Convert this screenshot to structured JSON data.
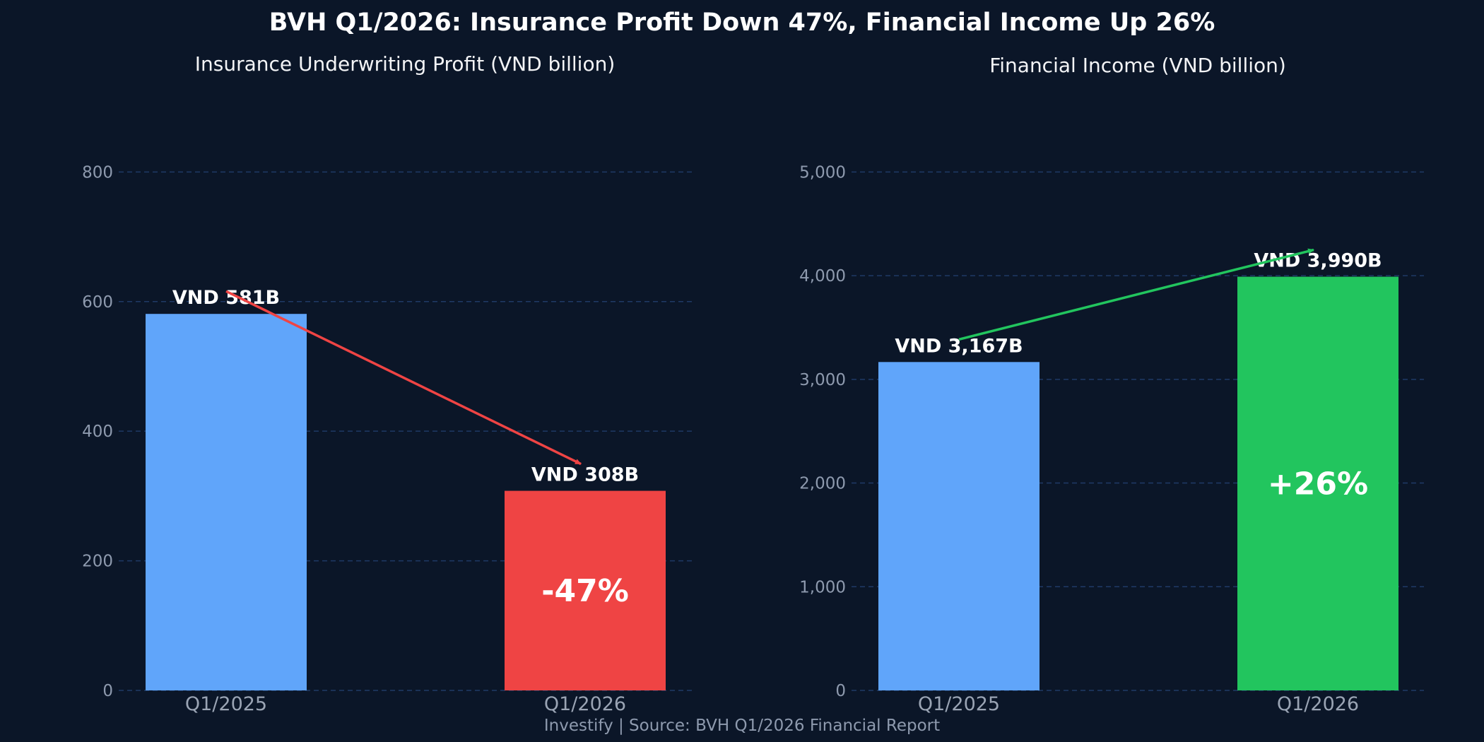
{
  "title": "BVH Q1/2026: Insurance Profit Down 47%, Financial Income Up 26%",
  "footer": "Investify  |  Source: BVH Q1/2026 Financial Report",
  "colors": {
    "background": "#0b1628",
    "bar_base": "#60a5fa",
    "bar_down": "#ef4444",
    "bar_up": "#22c55e",
    "arrow_down": "#ef4444",
    "arrow_up": "#22c55e",
    "grid": "#1f3a66"
  },
  "chart_data": [
    {
      "type": "bar",
      "title": "Insurance Underwriting Profit  (VND billion)",
      "categories": [
        "Q1/2025",
        "Q1/2026"
      ],
      "values": [
        581,
        308
      ],
      "bar_labels": [
        "VND 581B",
        "VND 308B"
      ],
      "change_label": "-47%",
      "bar_colors": [
        "#60a5fa",
        "#ef4444"
      ],
      "arrow_color": "#ef4444",
      "ylim": [
        0,
        880
      ],
      "yticks": [
        0,
        200,
        400,
        600,
        800
      ],
      "ytick_labels": [
        "0",
        "200",
        "400",
        "600",
        "800"
      ],
      "grid": true
    },
    {
      "type": "bar",
      "title": "Financial Income  (VND billion)",
      "categories": [
        "Q1/2025",
        "Q1/2026"
      ],
      "values": [
        3167,
        3990
      ],
      "bar_labels": [
        "VND 3,167B",
        "VND 3,990B"
      ],
      "change_label": "+26%",
      "bar_colors": [
        "#60a5fa",
        "#22c55e"
      ],
      "arrow_color": "#22c55e",
      "ylim": [
        0,
        5500
      ],
      "yticks": [
        0,
        1000,
        2000,
        3000,
        4000,
        5000
      ],
      "ytick_labels": [
        "0",
        "1,000",
        "2,000",
        "3,000",
        "4,000",
        "5,000"
      ],
      "grid": true
    }
  ]
}
